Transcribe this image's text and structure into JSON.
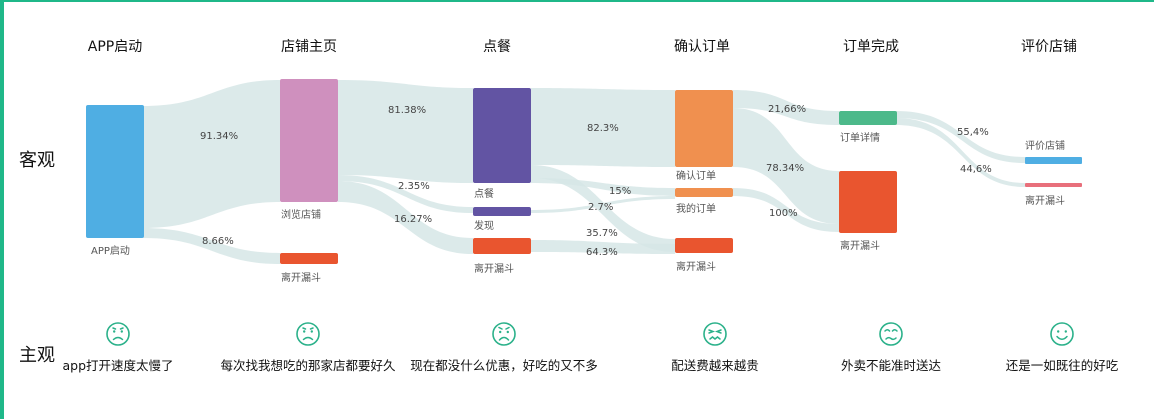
{
  "rows": {
    "objective": "客观",
    "subjective": "主观"
  },
  "stages": [
    {
      "title": "APP启动"
    },
    {
      "title": "店铺主页"
    },
    {
      "title": "点餐"
    },
    {
      "title": "确认订单"
    },
    {
      "title": "订单完成"
    },
    {
      "title": "评价店铺"
    }
  ],
  "nodes": {
    "app_start": {
      "label": "APP启动",
      "color": "#4faee3"
    },
    "store_home": {
      "label": "浏览店铺",
      "color": "#cf90be"
    },
    "leave_1": {
      "label": "离开漏斗",
      "color": "#e9552f"
    },
    "order_food": {
      "label": "点餐",
      "color": "#6254a3"
    },
    "discover": {
      "label": "发现",
      "color": "#6254a3"
    },
    "leave_2": {
      "label": "离开漏斗",
      "color": "#e9552f"
    },
    "confirm_order": {
      "label": "确认订单",
      "color": "#f0904f"
    },
    "my_orders": {
      "label": "我的订单",
      "color": "#f0904f"
    },
    "leave_3": {
      "label": "离开漏斗",
      "color": "#e9552f"
    },
    "order_detail": {
      "label": "订单详情",
      "color": "#4cb98a"
    },
    "leave_4": {
      "label": "离开漏斗",
      "color": "#e9552f"
    },
    "rate_store": {
      "label": "评价店铺",
      "color": "#4faee3"
    },
    "leave_5": {
      "label": "离开漏斗",
      "color": "#e86f7b"
    }
  },
  "flows": [
    {
      "id": "f1",
      "label": "91.34%"
    },
    {
      "id": "f2",
      "label": "8.66%"
    },
    {
      "id": "f3",
      "label": "81.38%"
    },
    {
      "id": "f4",
      "label": "2.35%"
    },
    {
      "id": "f5",
      "label": "16.27%"
    },
    {
      "id": "f6",
      "label": "82.3%"
    },
    {
      "id": "f7",
      "label": "15%"
    },
    {
      "id": "f8",
      "label": "2.7%"
    },
    {
      "id": "f9",
      "label": "35.7%"
    },
    {
      "id": "f10",
      "label": "64.3%"
    },
    {
      "id": "f11",
      "label": "21,66%"
    },
    {
      "id": "f12",
      "label": "78.34%"
    },
    {
      "id": "f13",
      "label": "100%"
    },
    {
      "id": "f14",
      "label": "55,4%"
    },
    {
      "id": "f15",
      "label": "44,6%"
    }
  ],
  "feedback": [
    {
      "face": "sad",
      "text": "app打开速度太慢了"
    },
    {
      "face": "sad",
      "text": "每次找我想吃的那家店都要好久"
    },
    {
      "face": "sad",
      "text": "现在都没什么优惠，好吃的又不多"
    },
    {
      "face": "tired",
      "text": "配送费越来越贵"
    },
    {
      "face": "worried",
      "text": "外卖不能准时送达"
    },
    {
      "face": "happy",
      "text": "还是一如既往的好吃"
    }
  ],
  "face_color": "#2bb18a"
}
